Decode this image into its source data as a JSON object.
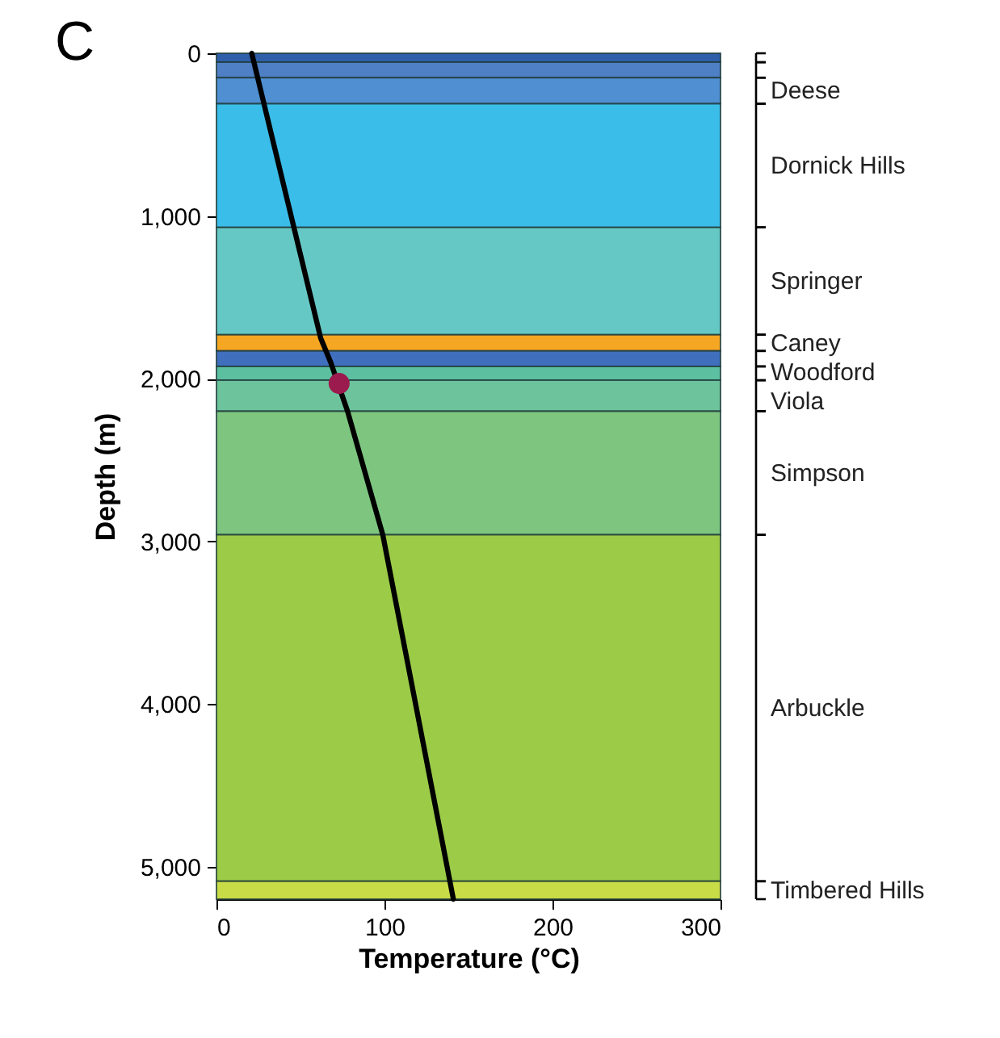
{
  "chart_data": {
    "type": "line",
    "title": "C",
    "xlabel": "Temperature (°C)",
    "ylabel": "Depth (m)",
    "xlim": [
      0,
      300
    ],
    "xticks": [
      0,
      100,
      200,
      300
    ],
    "ylim": [
      5200,
      0
    ],
    "yticks": [
      0,
      {
        "value": 1000,
        "label": "1,000"
      },
      {
        "value": 2000,
        "label": "2,000"
      },
      {
        "value": 3000,
        "label": "3,000"
      },
      {
        "value": 4000,
        "label": "4,000"
      },
      {
        "value": 5000,
        "label": "5,000"
      }
    ],
    "grid": false,
    "series": [
      {
        "color": "#000000",
        "marker": "none",
        "x": [
          21,
          62,
          68,
          78,
          99,
          141
        ],
        "values": [
          0,
          1750,
          1900,
          2200,
          2960,
          5200
        ]
      },
      {
        "type": "scatter",
        "color": "#9b1b4f",
        "marker": "circle",
        "x": [
          73
        ],
        "values": [
          2030
        ]
      }
    ],
    "bands": [
      {
        "axis": "y",
        "from": 0,
        "to": 55,
        "color": "#2e5fa8"
      },
      {
        "axis": "y",
        "from": 55,
        "to": 150,
        "color": "#4f7fc4"
      },
      {
        "axis": "y",
        "from": 150,
        "to": 310,
        "label": "Deese",
        "color": "#4f8fd2"
      },
      {
        "axis": "y",
        "from": 310,
        "to": 1070,
        "label": "Dornick Hills",
        "color": "#3bbde9"
      },
      {
        "axis": "y",
        "from": 1070,
        "to": 1730,
        "label": "Springer",
        "color": "#66c8c4"
      },
      {
        "axis": "y",
        "from": 1730,
        "to": 1830,
        "label": "Caney",
        "color": "#f5a623"
      },
      {
        "axis": "y",
        "from": 1830,
        "to": 1925,
        "label": "Woodford",
        "color": "#3f6fbd"
      },
      {
        "axis": "y",
        "from": 1925,
        "to": 2010,
        "color": "#5cc0a0"
      },
      {
        "axis": "y",
        "from": 2010,
        "to": 2200,
        "label": "Viola",
        "color": "#6cc39c"
      },
      {
        "axis": "y",
        "from": 2200,
        "to": 2960,
        "label": "Simpson",
        "color": "#7ec680"
      },
      {
        "axis": "y",
        "from": 2960,
        "to": 5090,
        "label": "Arbuckle",
        "color": "#9ccb48"
      },
      {
        "axis": "y",
        "from": 5090,
        "to": 5200,
        "label": "Timbered Hills",
        "color": "#c8dc48"
      }
    ]
  }
}
